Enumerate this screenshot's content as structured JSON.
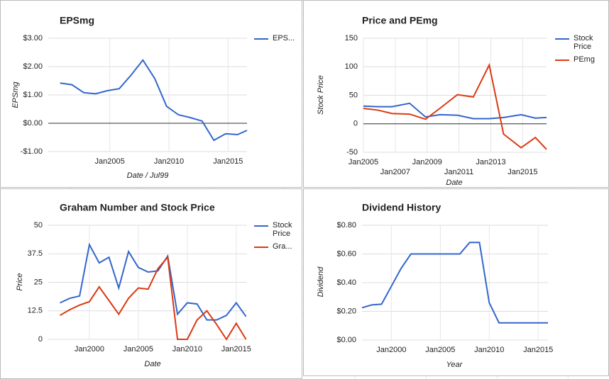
{
  "chart_data": [
    {
      "type": "line",
      "title": "EPSmg",
      "x_label": "Date / Jul99",
      "y_label": "EPSmg",
      "legend": "right",
      "grid": true,
      "x": [
        2000.8,
        2001.8,
        2002.8,
        2003.8,
        2004.8,
        2005.8,
        2006.8,
        2007.8,
        2008.8,
        2009.8,
        2010.8,
        2011.8,
        2012.8,
        2013.8,
        2014.8,
        2015.8,
        2016.6
      ],
      "series": [
        {
          "name": "EPS...",
          "color": "#3366cc",
          "values": [
            1.42,
            1.36,
            1.08,
            1.04,
            1.15,
            1.22,
            1.7,
            2.23,
            1.58,
            0.6,
            0.3,
            0.2,
            0.08,
            -0.6,
            -0.37,
            -0.4,
            -0.25
          ]
        }
      ],
      "xlim": [
        1999.8,
        2016.6
      ],
      "xticks": [
        {
          "value": 2005,
          "label": "Jan2005"
        },
        {
          "value": 2010,
          "label": "Jan2010"
        },
        {
          "value": 2015,
          "label": "Jan2015"
        }
      ],
      "ylim": [
        -1,
        3
      ],
      "yticks": [
        {
          "value": 3,
          "label": "$3.00"
        },
        {
          "value": 2,
          "label": "$2.00"
        },
        {
          "value": 1,
          "label": "$1.00"
        },
        {
          "value": 0,
          "label": "$0.00"
        },
        {
          "value": -1,
          "label": "-$1.00"
        }
      ]
    },
    {
      "type": "line",
      "title": "Price and PEmg",
      "x_label": "Date",
      "y_label": "Stock Price",
      "legend": "right",
      "grid": true,
      "x": [
        2005.0,
        2005.9,
        2006.8,
        2007.9,
        2008.9,
        2009.8,
        2010.9,
        2011.9,
        2012.9,
        2013.8,
        2014.9,
        2015.8,
        2016.5
      ],
      "series": [
        {
          "name": "Stock Price",
          "color": "#3366cc",
          "values": [
            31,
            30,
            30,
            36,
            12,
            16,
            15,
            9,
            9,
            11,
            16,
            10,
            11
          ]
        },
        {
          "name": "PEmg",
          "color": "#dc3912",
          "values": [
            27,
            24,
            18,
            17,
            8,
            27,
            51,
            47,
            103,
            -18,
            -42,
            -24,
            -45
          ]
        }
      ],
      "xlim": [
        2005,
        2016.5
      ],
      "xticks": [
        {
          "value": 2005,
          "label": "Jan2005"
        },
        {
          "value": 2007,
          "label": "Jan2007"
        },
        {
          "value": 2009,
          "label": "Jan2009"
        },
        {
          "value": 2011,
          "label": "Jan2011"
        },
        {
          "value": 2013,
          "label": "Jan2013"
        },
        {
          "value": 2015,
          "label": "Jan2015"
        }
      ],
      "ylim": [
        -50,
        150
      ],
      "yticks": [
        150,
        100,
        50,
        0,
        -50
      ]
    },
    {
      "type": "line",
      "title": "Graham Number and Stock Price",
      "x_label": "Date",
      "y_label": "Price",
      "legend": "right",
      "grid": true,
      "x": [
        1997,
        1998,
        1999,
        2000,
        2001,
        2002,
        2003,
        2004,
        2005,
        2006,
        2007,
        2008,
        2009,
        2010,
        2011,
        2012,
        2013,
        2014,
        2015,
        2016
      ],
      "series": [
        {
          "name": "Stock Price",
          "color": "#3366cc",
          "values": [
            16,
            18,
            19,
            41.5,
            33.5,
            36,
            22.5,
            38.5,
            31.5,
            29.5,
            30,
            36.5,
            11,
            16,
            15.5,
            8.5,
            8.5,
            10.5,
            16,
            10
          ]
        },
        {
          "name": "Gra...",
          "color": "#dc3912",
          "values": [
            10.5,
            13,
            15,
            16.5,
            23,
            17,
            11,
            18,
            22.5,
            22,
            31,
            36,
            0,
            0,
            8.5,
            12.5,
            6.5,
            0,
            7,
            0
          ]
        }
      ],
      "xlim": [
        1995.8,
        2016.1
      ],
      "xticks": [
        {
          "value": 2000,
          "label": "Jan2000"
        },
        {
          "value": 2005,
          "label": "Jan2005"
        },
        {
          "value": 2010,
          "label": "Jan2010"
        },
        {
          "value": 2015,
          "label": "Jan2015"
        }
      ],
      "ylim": [
        0,
        50
      ],
      "yticks": [
        50,
        37.5,
        25,
        12.5,
        0
      ]
    },
    {
      "type": "line",
      "title": "Dividend History",
      "x_label": "Year",
      "y_label": "Dividend",
      "grid": true,
      "x": [
        1997,
        1998,
        1999,
        2000,
        2001,
        2002,
        2003,
        2004,
        2005,
        2006,
        2007,
        2008,
        2009,
        2010,
        2011,
        2012,
        2013,
        2014,
        2015,
        2016
      ],
      "series": [
        {
          "color": "#3366cc",
          "values": [
            0.225,
            0.245,
            0.25,
            0.375,
            0.5,
            0.6,
            0.6,
            0.6,
            0.6,
            0.6,
            0.6,
            0.68,
            0.68,
            0.26,
            0.12,
            0.12,
            0.12,
            0.12,
            0.12,
            0.12
          ]
        }
      ],
      "xlim": [
        1997,
        2016
      ],
      "xticks": [
        {
          "value": 2000,
          "label": "Jan2000"
        },
        {
          "value": 2005,
          "label": "Jan2005"
        },
        {
          "value": 2010,
          "label": "Jan2010"
        },
        {
          "value": 2015,
          "label": "Jan2015"
        }
      ],
      "ylim": [
        0,
        0.8
      ],
      "yticks": [
        {
          "value": 0.8,
          "label": "$0.80"
        },
        {
          "value": 0.6,
          "label": "$0.60"
        },
        {
          "value": 0.4,
          "label": "$0.40"
        },
        {
          "value": 0.2,
          "label": "$0.20"
        },
        {
          "value": 0,
          "label": "$0.00"
        }
      ]
    }
  ]
}
